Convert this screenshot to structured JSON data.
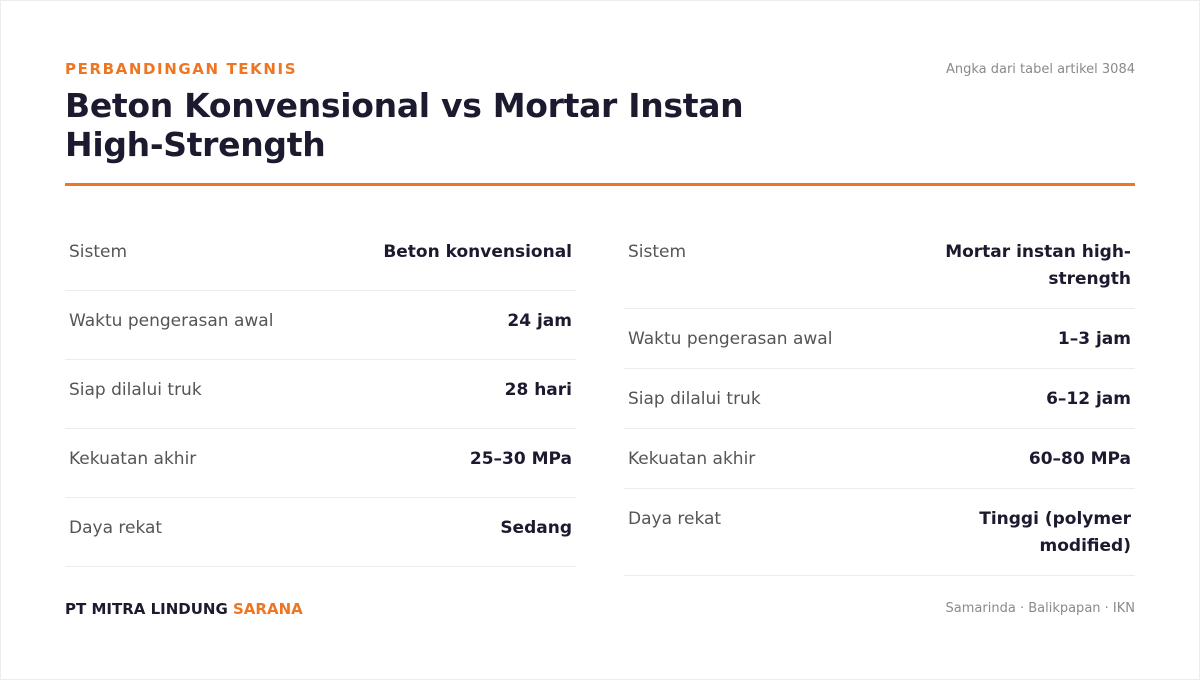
{
  "header": {
    "eyebrow": "PERBANDINGAN TEKNIS",
    "title": "Beton Konvensional vs Mortar Instan High-Strength",
    "source_note": "Angka dari tabel artikel 3084"
  },
  "tables": {
    "left": {
      "rows": [
        {
          "label": "Sistem",
          "value": "Beton konvensional"
        },
        {
          "label": "Waktu pengerasan awal",
          "value": "24 jam"
        },
        {
          "label": "Siap dilalui truk",
          "value": "28 hari"
        },
        {
          "label": "Kekuatan akhir",
          "value": "25–30 MPa"
        },
        {
          "label": "Daya rekat",
          "value": "Sedang"
        }
      ]
    },
    "right": {
      "rows": [
        {
          "label": "Sistem",
          "value": "Mortar instan high-strength"
        },
        {
          "label": "Waktu pengerasan awal",
          "value": "1–3 jam"
        },
        {
          "label": "Siap dilalui truk",
          "value": "6–12 jam"
        },
        {
          "label": "Kekuatan akhir",
          "value": "60–80 MPa"
        },
        {
          "label": "Daya rekat",
          "value": "Tinggi (polymer modified)"
        }
      ]
    }
  },
  "footer": {
    "brand_main": "PT MITRA LINDUNG",
    "brand_accent": "SARANA",
    "locations": "Samarinda · Balikpapan · IKN"
  },
  "colors": {
    "accent": "#ee7623",
    "text_dark": "#1b1a2e",
    "text_muted": "#555555"
  }
}
